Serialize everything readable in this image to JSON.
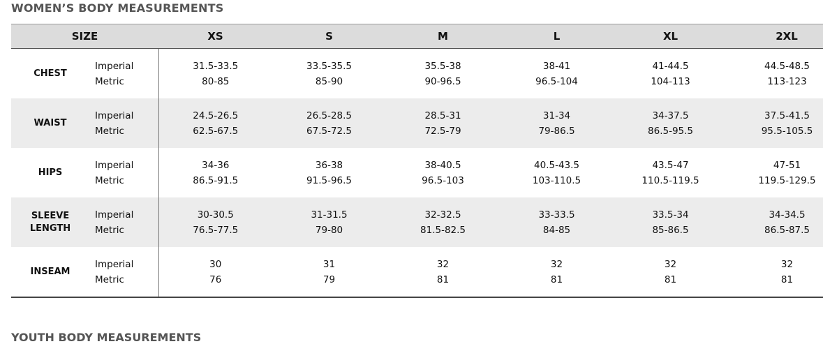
{
  "title": "WOMEN’S BODY MEASUREMENTS",
  "table": {
    "headers": [
      "SIZE",
      "XS",
      "S",
      "M",
      "L",
      "XL",
      "2XL"
    ],
    "rows": [
      {
        "label": "CHEST",
        "units": [
          "Imperial",
          "Metric"
        ],
        "imperial": [
          "31.5-33.5",
          "33.5-35.5",
          "35.5-38",
          "38-41",
          "41-44.5",
          "44.5-48.5"
        ],
        "metric": [
          "80-85",
          "85-90",
          "90-96.5",
          "96.5-104",
          "104-113",
          "113-123"
        ]
      },
      {
        "label": "WAIST",
        "units": [
          "Imperial",
          "Metric"
        ],
        "imperial": [
          "24.5-26.5",
          "26.5-28.5",
          "28.5-31",
          "31-34",
          "34-37.5",
          "37.5-41.5"
        ],
        "metric": [
          "62.5-67.5",
          "67.5-72.5",
          "72.5-79",
          "79-86.5",
          "86.5-95.5",
          "95.5-105.5"
        ]
      },
      {
        "label": "HIPS",
        "units": [
          "Imperial",
          "Metric"
        ],
        "imperial": [
          "34-36",
          "36-38",
          "38-40.5",
          "40.5-43.5",
          "43.5-47",
          "47-51"
        ],
        "metric": [
          "86.5-91.5",
          "91.5-96.5",
          "96.5-103",
          "103-110.5",
          "110.5-119.5",
          "119.5-129.5"
        ]
      },
      {
        "label": "SLEEVE LENGTH",
        "units": [
          "Imperial",
          "Metric"
        ],
        "imperial": [
          "30-30.5",
          "31-31.5",
          "32-32.5",
          "33-33.5",
          "33.5-34",
          "34-34.5"
        ],
        "metric": [
          "76.5-77.5",
          "79-80",
          "81.5-82.5",
          "84-85",
          "85-86.5",
          "86.5-87.5"
        ]
      },
      {
        "label": "INSEAM",
        "units": [
          "Imperial",
          "Metric"
        ],
        "imperial": [
          "30",
          "31",
          "32",
          "32",
          "32",
          "32"
        ],
        "metric": [
          "76",
          "79",
          "81",
          "81",
          "81",
          "81"
        ]
      }
    ]
  },
  "next_title": "YOUTH BODY MEASUREMENTS"
}
